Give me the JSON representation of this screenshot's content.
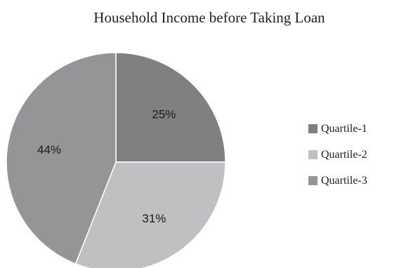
{
  "chart_data": {
    "type": "pie",
    "title": "Household Income before Taking Loan",
    "legend_position": "right",
    "slices": [
      {
        "name": "Quartile-1",
        "value": 25,
        "label": "25%",
        "color": "#808080"
      },
      {
        "name": "Quartile-2",
        "value": 31,
        "label": "31%",
        "color": "#c0c0c2"
      },
      {
        "name": "Quartile-3",
        "value": 44,
        "label": "44%",
        "color": "#959597"
      }
    ]
  }
}
